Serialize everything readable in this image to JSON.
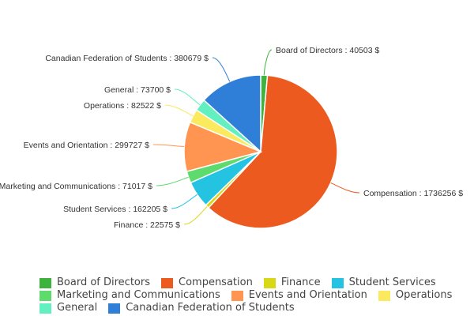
{
  "chart_data": {
    "type": "pie",
    "title": "",
    "currency_suffix": "$",
    "slices": [
      {
        "name": "Board of Directors",
        "value": 40503,
        "color": "#3db33d"
      },
      {
        "name": "Compensation",
        "value": 1736256,
        "color": "#ec5a1f"
      },
      {
        "name": "Finance",
        "value": 22575,
        "color": "#d8d817"
      },
      {
        "name": "Student Services",
        "value": 162205,
        "color": "#25c3e2"
      },
      {
        "name": "Marketing and Communications",
        "value": 71017,
        "color": "#5ddb6d"
      },
      {
        "name": "Events and Orientation",
        "value": 299727,
        "color": "#ff9551"
      },
      {
        "name": "Operations",
        "value": 82522,
        "color": "#fbe95e"
      },
      {
        "name": "General",
        "value": 73700,
        "color": "#63f0c0"
      },
      {
        "name": "Canadian Federation of Students",
        "value": 380679,
        "color": "#2f7ed8"
      }
    ],
    "labels": [
      "Board of Directors : 40503 $",
      "Compensation : 1736256 $",
      "Finance : 22575 $",
      "Student Services : 162205 $",
      "Marketing and Communications : 71017 $",
      "Events and Orientation : 299727 $",
      "Operations : 82522 $",
      "General : 73700 $",
      "Canadian Federation of Students : 380679 $"
    ],
    "legend_position": "bottom"
  },
  "legend": {
    "rows": [
      [
        0,
        1,
        2,
        3
      ],
      [
        4,
        5,
        6
      ],
      [
        7,
        8
      ]
    ]
  }
}
